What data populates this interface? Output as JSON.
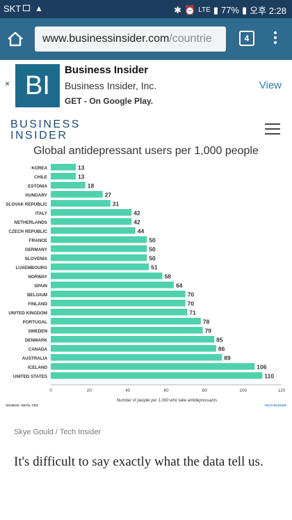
{
  "status_bar": {
    "carrier": "SKT",
    "lte": "LTE",
    "battery": "77%",
    "time": "오후 2:28"
  },
  "browser": {
    "url_host": "www.businessinsider.com",
    "url_path": "/countrie",
    "tab_count": "4"
  },
  "ad": {
    "logo": "BI",
    "title": "Business Insider",
    "subtitle": "Business Insider, Inc.",
    "cta": "GET - On Google Play.",
    "view": "View",
    "close": "×"
  },
  "site": {
    "logo_line1": "BUSINESS",
    "logo_line2": "INSIDER"
  },
  "chart_data": {
    "type": "bar",
    "orientation": "horizontal",
    "title": "Global antidepressant users per 1,000 people",
    "xlabel": "Number of people per 1,000 who take antidepressants",
    "source": "SOURCE: OECD, CDC",
    "brand": "TECH INSIDER",
    "xlim": [
      0,
      120
    ],
    "xticks": [
      0,
      20,
      40,
      60,
      80,
      100,
      120
    ],
    "bar_color": "#4fd1ad",
    "categories": [
      "KOREA",
      "CHILE",
      "ESTONIA",
      "HUNGARY",
      "SLOVAK REPUBLIC",
      "ITALY",
      "NETHERLANDS",
      "CZECH REPUBLIC",
      "FRANCE",
      "GERMANY",
      "SLOVENIA",
      "LUXEMBOURG",
      "NORWAY",
      "SPAIN",
      "BELGIUM",
      "FINLAND",
      "UNITED KINGDOM",
      "PORTUGAL",
      "SWEDEN",
      "DENMARK",
      "CANADA",
      "AUSTRALIA",
      "ICELAND",
      "UNITED STATES"
    ],
    "values": [
      13,
      13,
      18,
      27,
      31,
      42,
      42,
      44,
      50,
      50,
      50,
      51,
      58,
      64,
      70,
      70,
      71,
      78,
      79,
      85,
      86,
      89,
      106,
      110
    ]
  },
  "credit": "Skye Gould / Tech Insider",
  "article": {
    "paragraph": "It's difficult to say exactly what the data tell us."
  }
}
